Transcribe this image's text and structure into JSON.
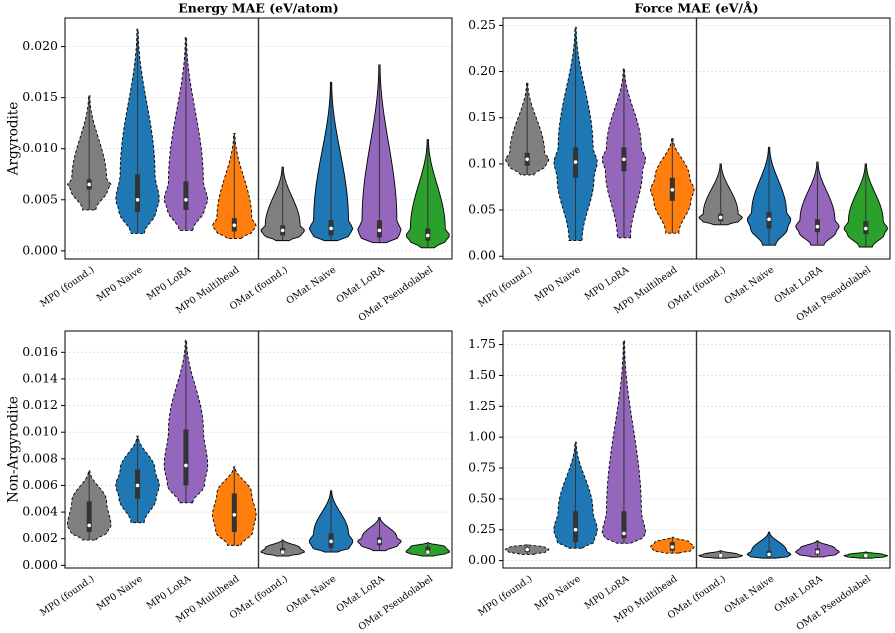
{
  "chart_data": [
    {
      "type": "violin",
      "title": "Energy MAE (eV/atom)",
      "ylabel": "Argyrodite",
      "categories": [
        "MP0 (found.)",
        "MP0 Naive",
        "MP0 LoRA",
        "MP0 Multihead",
        "OMat (found.)",
        "OMat Naive",
        "OMat LoRA",
        "OMat Pseudolabel"
      ],
      "colors": [
        "#7f7f7f",
        "#1f77b4",
        "#9467bd",
        "#ff7f0e",
        "#7f7f7f",
        "#1f77b4",
        "#9467bd",
        "#2ca02c"
      ],
      "linestyles": [
        "dashed",
        "dashed",
        "dashed",
        "dashed",
        "solid",
        "solid",
        "solid",
        "solid"
      ],
      "stats": [
        {
          "min": 0.004,
          "q1": 0.006,
          "median": 0.0065,
          "q3": 0.007,
          "max": 0.0152
        },
        {
          "min": 0.0017,
          "q1": 0.0038,
          "median": 0.005,
          "q3": 0.0075,
          "max": 0.0217
        },
        {
          "min": 0.002,
          "q1": 0.004,
          "median": 0.005,
          "q3": 0.0068,
          "max": 0.0209
        },
        {
          "min": 0.0012,
          "q1": 0.0019,
          "median": 0.0025,
          "q3": 0.0032,
          "max": 0.0115
        },
        {
          "min": 0.001,
          "q1": 0.0015,
          "median": 0.002,
          "q3": 0.0025,
          "max": 0.0082
        },
        {
          "min": 0.001,
          "q1": 0.0015,
          "median": 0.0022,
          "q3": 0.003,
          "max": 0.0165
        },
        {
          "min": 0.0008,
          "q1": 0.0013,
          "median": 0.002,
          "q3": 0.003,
          "max": 0.0182
        },
        {
          "min": 0.0003,
          "q1": 0.001,
          "median": 0.0015,
          "q3": 0.0022,
          "max": 0.0109
        }
      ],
      "ylim": [
        -0.0008,
        0.0228
      ],
      "yticks": [
        {
          "value": 0,
          "label": "0.000"
        },
        {
          "value": 0.005,
          "label": "0.005"
        },
        {
          "value": 0.01,
          "label": "0.010"
        },
        {
          "value": 0.015,
          "label": "0.015"
        },
        {
          "value": 0.02,
          "label": "0.020"
        }
      ],
      "grid": true
    },
    {
      "type": "violin",
      "title": "Force MAE (eV/Å)",
      "categories": [
        "MP0 (found.)",
        "MP0 Naive",
        "MP0 LoRA",
        "MP0 Multihead",
        "OMat (found.)",
        "OMat Naive",
        "OMat LoRA",
        "OMat Pseudolabel"
      ],
      "colors": [
        "#7f7f7f",
        "#1f77b4",
        "#9467bd",
        "#ff7f0e",
        "#7f7f7f",
        "#1f77b4",
        "#9467bd",
        "#2ca02c"
      ],
      "linestyles": [
        "dashed",
        "dashed",
        "dashed",
        "dashed",
        "solid",
        "solid",
        "solid",
        "solid"
      ],
      "stats": [
        {
          "min": 0.088,
          "q1": 0.098,
          "median": 0.105,
          "q3": 0.112,
          "max": 0.188
        },
        {
          "min": 0.017,
          "q1": 0.085,
          "median": 0.102,
          "q3": 0.118,
          "max": 0.248
        },
        {
          "min": 0.02,
          "q1": 0.092,
          "median": 0.105,
          "q3": 0.118,
          "max": 0.203
        },
        {
          "min": 0.025,
          "q1": 0.06,
          "median": 0.072,
          "q3": 0.085,
          "max": 0.128
        },
        {
          "min": 0.034,
          "q1": 0.038,
          "median": 0.042,
          "q3": 0.046,
          "max": 0.1
        },
        {
          "min": 0.012,
          "q1": 0.03,
          "median": 0.04,
          "q3": 0.048,
          "max": 0.118
        },
        {
          "min": 0.012,
          "q1": 0.026,
          "median": 0.032,
          "q3": 0.04,
          "max": 0.102
        },
        {
          "min": 0.01,
          "q1": 0.024,
          "median": 0.03,
          "q3": 0.038,
          "max": 0.1
        }
      ],
      "ylim": [
        -0.003,
        0.258
      ],
      "yticks": [
        {
          "value": 0,
          "label": "0.00"
        },
        0.05,
        {
          "value": 0.1,
          "label": "0.10"
        },
        0.15,
        {
          "value": 0.2,
          "label": "0.20"
        },
        0.25
      ],
      "grid": true
    },
    {
      "type": "violin",
      "ylabel": "Non-Argyrodite",
      "categories": [
        "MP0 (found.)",
        "MP0 Naive",
        "MP0 LoRA",
        "MP0 Multihead",
        "OMat (found.)",
        "OMat Naive",
        "OMat LoRA",
        "OMat Pseudolabel"
      ],
      "colors": [
        "#7f7f7f",
        "#1f77b4",
        "#9467bd",
        "#ff7f0e",
        "#7f7f7f",
        "#1f77b4",
        "#9467bd",
        "#2ca02c"
      ],
      "linestyles": [
        "dashed",
        "dashed",
        "dashed",
        "dashed",
        "solid",
        "solid",
        "solid",
        "solid"
      ],
      "stats": [
        {
          "min": 0.0019,
          "q1": 0.0025,
          "median": 0.003,
          "q3": 0.0048,
          "max": 0.0071
        },
        {
          "min": 0.0032,
          "q1": 0.005,
          "median": 0.006,
          "q3": 0.0072,
          "max": 0.0097
        },
        {
          "min": 0.0047,
          "q1": 0.006,
          "median": 0.0075,
          "q3": 0.0102,
          "max": 0.0169
        },
        {
          "min": 0.0015,
          "q1": 0.0025,
          "median": 0.0038,
          "q3": 0.0054,
          "max": 0.0074
        },
        {
          "min": 0.0007,
          "q1": 0.0009,
          "median": 0.001,
          "q3": 0.0013,
          "max": 0.0019
        },
        {
          "min": 0.001,
          "q1": 0.0013,
          "median": 0.0018,
          "q3": 0.0024,
          "max": 0.0056
        },
        {
          "min": 0.0011,
          "q1": 0.0015,
          "median": 0.0018,
          "q3": 0.0021,
          "max": 0.0036
        },
        {
          "min": 0.0007,
          "q1": 0.0009,
          "median": 0.001,
          "q3": 0.0014,
          "max": 0.0017
        }
      ],
      "ylim": [
        -0.0002,
        0.0176
      ],
      "yticks": [
        {
          "value": 0,
          "label": "0.000"
        },
        {
          "value": 0.002,
          "label": "0.002"
        },
        {
          "value": 0.004,
          "label": "0.004"
        },
        {
          "value": 0.006,
          "label": "0.006"
        },
        {
          "value": 0.008,
          "label": "0.008"
        },
        {
          "value": 0.01,
          "label": "0.010"
        },
        {
          "value": 0.012,
          "label": "0.012"
        },
        {
          "value": 0.014,
          "label": "0.014"
        },
        {
          "value": 0.016,
          "label": "0.016"
        }
      ],
      "grid": true
    },
    {
      "type": "violin",
      "categories": [
        "MP0 (found.)",
        "MP0 Naive",
        "MP0 LoRA",
        "MP0 Multihead",
        "OMat (found.)",
        "OMat Naive",
        "OMat LoRA",
        "OMat Pseudolabel"
      ],
      "colors": [
        "#7f7f7f",
        "#1f77b4",
        "#9467bd",
        "#ff7f0e",
        "#7f7f7f",
        "#1f77b4",
        "#9467bd",
        "#2ca02c"
      ],
      "linestyles": [
        "dashed",
        "dashed",
        "dashed",
        "dashed",
        "solid",
        "solid",
        "solid",
        "solid"
      ],
      "stats": [
        {
          "min": 0.05,
          "q1": 0.07,
          "median": 0.09,
          "q3": 0.11,
          "max": 0.13
        },
        {
          "min": 0.1,
          "q1": 0.15,
          "median": 0.25,
          "q3": 0.4,
          "max": 0.96
        },
        {
          "min": 0.14,
          "q1": 0.18,
          "median": 0.22,
          "q3": 0.4,
          "max": 1.78
        },
        {
          "min": 0.06,
          "q1": 0.08,
          "median": 0.11,
          "q3": 0.15,
          "max": 0.19
        },
        {
          "min": 0.02,
          "q1": 0.03,
          "median": 0.04,
          "q3": 0.05,
          "max": 0.08
        },
        {
          "min": 0.02,
          "q1": 0.03,
          "median": 0.05,
          "q3": 0.08,
          "max": 0.23
        },
        {
          "min": 0.03,
          "q1": 0.05,
          "median": 0.07,
          "q3": 0.1,
          "max": 0.16
        },
        {
          "min": 0.02,
          "q1": 0.03,
          "median": 0.04,
          "q3": 0.05,
          "max": 0.07
        }
      ],
      "ylim": [
        -0.06,
        1.86
      ],
      "yticks": [
        {
          "value": 0,
          "label": "0.00"
        },
        0.25,
        {
          "value": 0.5,
          "label": "0.50"
        },
        0.75,
        {
          "value": 1,
          "label": "1.00"
        },
        1.25,
        {
          "value": 1.5,
          "label": "1.50"
        },
        1.75
      ],
      "grid": true
    }
  ]
}
